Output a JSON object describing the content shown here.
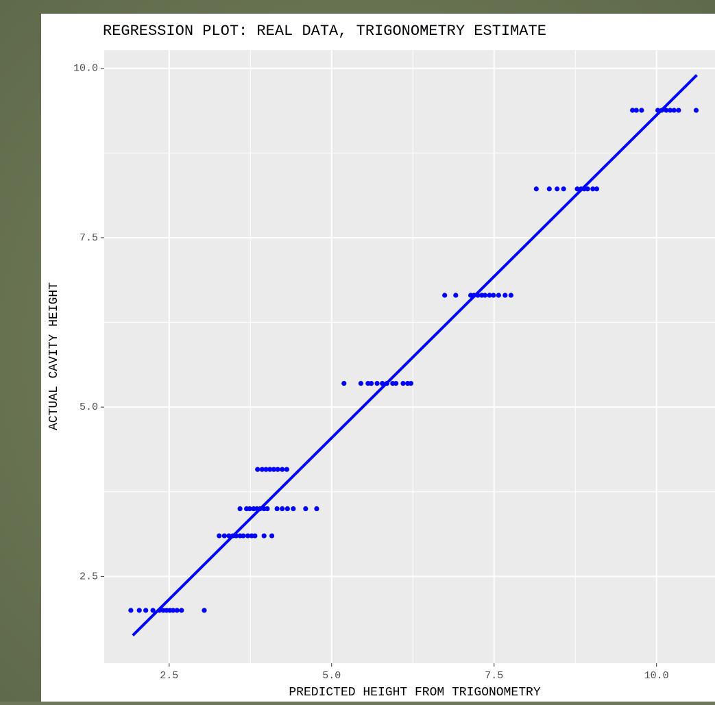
{
  "chart_data": {
    "type": "scatter",
    "title": "REGRESSION PLOT: REAL DATA, TRIGONOMETRY ESTIMATE",
    "x_label": "PREDICTED HEIGHT FROM TRIGONOMETRY",
    "y_label": "ACTUAL CAVITY HEIGHT",
    "color": "#0000ff",
    "x": [
      1.91,
      2.04,
      2.14,
      2.25,
      2.35,
      2.41,
      2.46,
      2.51,
      2.56,
      2.62,
      2.69,
      3.04,
      3.27,
      3.35,
      3.42,
      3.48,
      3.53,
      3.59,
      3.64,
      3.71,
      3.77,
      3.82,
      3.96,
      4.08,
      3.59,
      3.69,
      3.74,
      3.8,
      3.85,
      3.9,
      3.96,
      4.01,
      4.16,
      4.24,
      4.32,
      4.41,
      4.6,
      4.77,
      3.86,
      3.93,
      3.99,
      4.05,
      4.11,
      4.17,
      4.24,
      4.31,
      5.19,
      5.45,
      5.56,
      5.61,
      5.7,
      5.78,
      5.85,
      5.94,
      5.99,
      6.1,
      6.17,
      6.22,
      6.74,
      6.91,
      7.14,
      7.19,
      7.25,
      7.31,
      7.36,
      7.43,
      7.49,
      7.57,
      7.67,
      7.76,
      8.15,
      8.35,
      8.47,
      8.57,
      8.78,
      8.84,
      8.89,
      8.94,
      9.02,
      9.08,
      9.63,
      9.69,
      9.77,
      10.02,
      10.08,
      10.15,
      10.21,
      10.27,
      10.34,
      10.61
    ],
    "values": [
      2.0,
      2.0,
      2.0,
      2.0,
      2.0,
      2.0,
      2.0,
      2.0,
      2.0,
      2.0,
      2.0,
      2.0,
      3.1,
      3.1,
      3.1,
      3.1,
      3.1,
      3.1,
      3.1,
      3.1,
      3.1,
      3.1,
      3.1,
      3.1,
      3.5,
      3.5,
      3.5,
      3.5,
      3.5,
      3.5,
      3.5,
      3.5,
      3.5,
      3.5,
      3.5,
      3.5,
      3.5,
      3.5,
      4.08,
      4.08,
      4.08,
      4.08,
      4.08,
      4.08,
      4.08,
      4.08,
      5.35,
      5.35,
      5.35,
      5.35,
      5.35,
      5.35,
      5.35,
      5.35,
      5.35,
      5.35,
      5.35,
      5.35,
      6.65,
      6.65,
      6.65,
      6.65,
      6.65,
      6.65,
      6.65,
      6.65,
      6.65,
      6.65,
      6.65,
      6.65,
      8.22,
      8.22,
      8.22,
      8.22,
      8.22,
      8.22,
      8.22,
      8.22,
      8.22,
      8.22,
      9.38,
      9.38,
      9.38,
      9.38,
      9.38,
      9.38,
      9.38,
      9.38,
      9.38,
      9.38
    ],
    "regression_line": {
      "x": [
        1.94,
        10.62
      ],
      "y": [
        1.63,
        9.9
      ]
    },
    "xlim": [
      1.5,
      10.9
    ],
    "ylim": [
      1.22,
      10.27
    ],
    "xticks": [
      2.5,
      {
        "value": 5,
        "label": "5.0"
      },
      7.5,
      {
        "value": 10,
        "label": "10.0"
      }
    ],
    "yticks": [
      2.5,
      {
        "value": 5,
        "label": "5.0"
      },
      7.5,
      {
        "value": 10,
        "label": "10.0"
      }
    ],
    "x_minor_ticks": [
      3.75,
      6.25,
      8.75
    ],
    "y_minor_ticks": [
      3.75,
      6.25,
      8.75
    ],
    "grid": true
  }
}
